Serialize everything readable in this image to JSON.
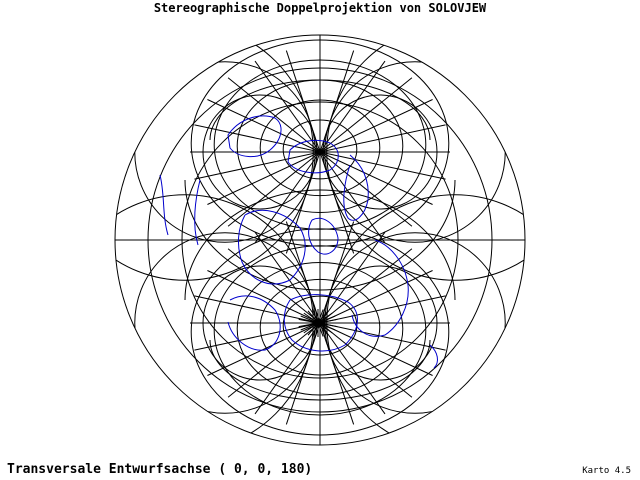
{
  "map": {
    "title": "Stereographische Doppelprojektion von SOLOVJEW",
    "caption": "Transversale Entwurfsachse ( 0, 0, 180)",
    "version_label": "Karto 4.5",
    "projection": "double stereographic (Solovjew)",
    "axis": [
      0,
      0,
      180
    ],
    "colors": {
      "graticule": "#000000",
      "coastline": "#0000cc",
      "background": "#ffffff"
    }
  }
}
